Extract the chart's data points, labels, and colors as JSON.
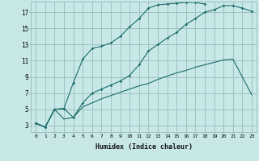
{
  "xlabel": "Humidex (Indice chaleur)",
  "bg_color": "#c8e8e8",
  "grid_color": "#99bbbb",
  "line_color": "#1a6b6b",
  "xlim": [
    -0.5,
    23.5
  ],
  "ylim": [
    2.2,
    18.3
  ],
  "yticks": [
    3,
    5,
    7,
    9,
    11,
    13,
    15,
    17
  ],
  "xticks": [
    0,
    1,
    2,
    3,
    4,
    5,
    6,
    7,
    8,
    9,
    10,
    11,
    12,
    13,
    14,
    15,
    16,
    17,
    18,
    19,
    20,
    21,
    22,
    23
  ],
  "curve1_x": [
    0,
    1,
    2,
    3,
    4,
    5,
    6,
    7,
    8,
    9,
    10,
    11,
    12,
    13,
    14,
    15,
    16,
    17,
    18,
    19,
    20,
    21,
    22,
    23
  ],
  "curve1_y": [
    3.3,
    2.8,
    5.0,
    5.1,
    4.0,
    5.8,
    7.0,
    7.5,
    8.0,
    8.5,
    9.2,
    10.5,
    12.2,
    13.0,
    13.8,
    14.5,
    15.5,
    16.2,
    17.0,
    17.3,
    17.8,
    17.8,
    17.5,
    17.1
  ],
  "curve2_x": [
    0,
    1,
    2,
    3,
    4,
    5,
    6,
    7,
    8,
    9,
    10,
    11,
    12,
    13,
    14,
    15,
    16,
    17,
    18
  ],
  "curve2_y": [
    3.3,
    2.8,
    5.0,
    5.1,
    8.3,
    11.2,
    12.5,
    12.8,
    13.2,
    14.0,
    15.2,
    16.2,
    17.5,
    17.9,
    18.0,
    18.1,
    18.2,
    18.2,
    18.0
  ],
  "curve3_x": [
    0,
    1,
    2,
    3,
    4,
    5,
    6,
    7,
    8,
    9,
    10,
    11,
    12,
    13,
    14,
    15,
    16,
    17,
    18,
    19,
    20,
    21,
    22,
    23
  ],
  "curve3_y": [
    3.3,
    2.8,
    5.0,
    3.8,
    4.0,
    5.3,
    5.8,
    6.3,
    6.7,
    7.1,
    7.5,
    7.9,
    8.2,
    8.7,
    9.1,
    9.5,
    9.8,
    10.2,
    10.5,
    10.8,
    11.1,
    11.2,
    9.0,
    6.8
  ]
}
